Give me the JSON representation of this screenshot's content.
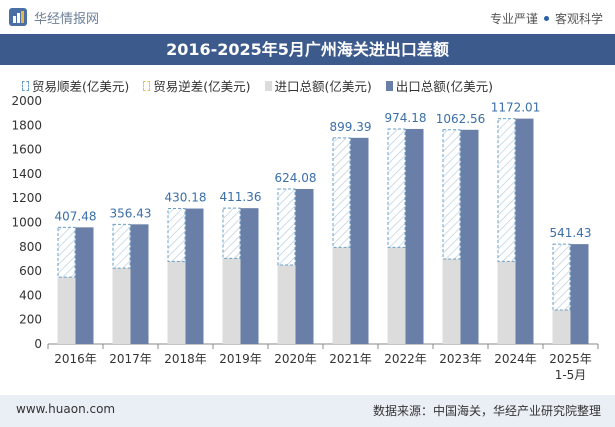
{
  "header": {
    "brand": "华经情报网",
    "tagline_left": "专业严谨",
    "tagline_right": "客观科学"
  },
  "chart_data": {
    "type": "bar",
    "title": "2016-2025年5月广州海关进出口差额",
    "categories": [
      "2016年",
      "2017年",
      "2018年",
      "2019年",
      "2020年",
      "2021年",
      "2022年",
      "2023年",
      "2024年",
      "2025年"
    ],
    "category_sublabels": [
      "",
      "",
      "",
      "",
      "",
      "",
      "",
      "",
      "",
      "1-5月"
    ],
    "series": [
      {
        "name": "贸易顺差(亿美元)",
        "values": [
          407.48,
          356.43,
          430.18,
          411.36,
          624.08,
          899.39,
          974.18,
          1062.56,
          1172.01,
          541.43
        ]
      },
      {
        "name": "贸易逆差(亿美元)",
        "values": [
          null,
          null,
          null,
          null,
          null,
          null,
          null,
          null,
          null,
          null
        ]
      },
      {
        "name": "进口总额(亿美元)",
        "values": [
          550,
          625,
          680,
          705,
          650,
          795,
          795,
          700,
          680,
          280
        ]
      },
      {
        "name": "出口总额(亿美元)",
        "values": [
          960,
          985,
          1115,
          1118,
          1276,
          1697,
          1770,
          1763,
          1855,
          822
        ]
      }
    ],
    "data_labels": [
      "407.48",
      "356.43",
      "430.18",
      "411.36",
      "624.08",
      "899.39",
      "974.18",
      "1062.56",
      "1172.01",
      "541.43"
    ],
    "ylim": [
      0,
      2000
    ],
    "yticks": [
      0,
      200,
      400,
      600,
      800,
      1000,
      1200,
      1400,
      1600,
      1800,
      2000
    ],
    "grid": false,
    "legend_position": "top-left",
    "colors": {
      "surplus_stroke": "#6aa0c8",
      "deficit_stroke": "#e3c25a",
      "import_fill": "#dcdcdc",
      "export_fill": "#6a7fa8",
      "label": "#3a6fa8"
    }
  },
  "footer": {
    "url": "www.huaon.com",
    "source": "数据来源：中国海关，华经产业研究院整理"
  }
}
